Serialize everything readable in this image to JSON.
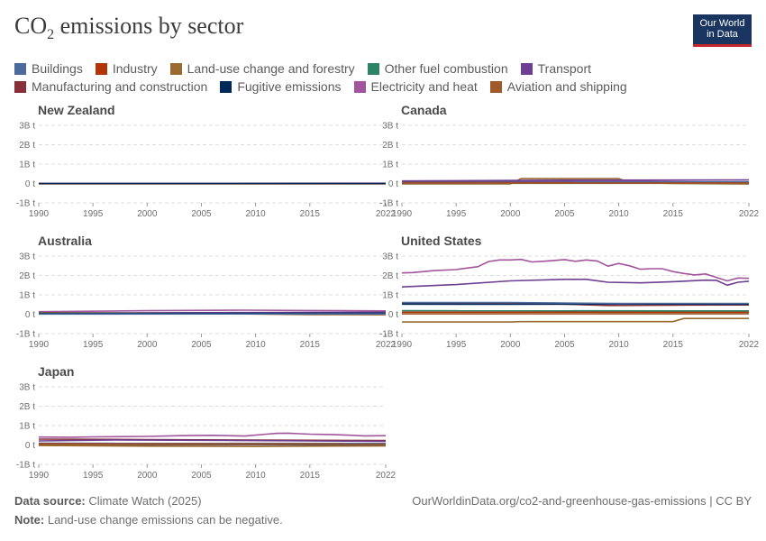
{
  "header": {
    "title_main": "CO",
    "title_sub": "2",
    "title_rest": " emissions by sector",
    "logo_line1": "Our World",
    "logo_line2": "in Data"
  },
  "legend": [
    {
      "name": "Buildings",
      "color": "#4c6a9c"
    },
    {
      "name": "Industry",
      "color": "#b13507"
    },
    {
      "name": "Land-use change and forestry",
      "color": "#9a6a2f"
    },
    {
      "name": "Other fuel combustion",
      "color": "#2c8465"
    },
    {
      "name": "Transport",
      "color": "#6d3e91"
    },
    {
      "name": "Manufacturing and construction",
      "color": "#883039"
    },
    {
      "name": "Fugitive emissions",
      "color": "#00295b"
    },
    {
      "name": "Electricity and heat",
      "color": "#a2559c"
    },
    {
      "name": "Aviation and shipping",
      "color": "#a05a2c"
    }
  ],
  "chart_data": [
    {
      "type": "line",
      "title": "New Zealand",
      "ylim": [
        -1000000000,
        3000000000
      ],
      "ytick_labels": [
        "3B t",
        "2B t",
        "1B t",
        "0 t",
        "-1B t"
      ],
      "xtick_labels": [
        "1990",
        "1995",
        "2000",
        "2005",
        "2010",
        "2015",
        "2022"
      ],
      "series": [
        {
          "name": "Buildings",
          "x": [
            1990,
            2022
          ],
          "y": [
            2000000,
            2000000
          ]
        },
        {
          "name": "Transport",
          "x": [
            1990,
            2022
          ],
          "y": [
            10000000,
            15000000
          ]
        },
        {
          "name": "Electricity and heat",
          "x": [
            1990,
            2022
          ],
          "y": [
            5000000,
            5000000
          ]
        },
        {
          "name": "Land-use change and forestry",
          "x": [
            1990,
            2022
          ],
          "y": [
            -20000000,
            -20000000
          ]
        },
        {
          "name": "Fugitive emissions",
          "x": [
            1990,
            2022
          ],
          "y": [
            1000000,
            1000000
          ]
        }
      ]
    },
    {
      "type": "line",
      "title": "Canada",
      "ylim": [
        -1000000000,
        3000000000
      ],
      "ytick_labels": [
        "3B t",
        "2B t",
        "1B t",
        "0 t",
        "-1B t"
      ],
      "xtick_labels": [
        "1990",
        "1995",
        "2000",
        "2005",
        "2010",
        "2015",
        "2022"
      ],
      "series": [
        {
          "name": "Land-use change and forestry",
          "x": [
            1990,
            2000,
            2001,
            2005,
            2010,
            2011,
            2015,
            2022
          ],
          "y": [
            -20000000,
            -20000000,
            250000000,
            250000000,
            250000000,
            50000000,
            0,
            -30000000
          ]
        },
        {
          "name": "Electricity and heat",
          "x": [
            1990,
            2000,
            2007,
            2015,
            2022
          ],
          "y": [
            100000000,
            130000000,
            130000000,
            90000000,
            60000000
          ]
        },
        {
          "name": "Transport",
          "x": [
            1990,
            2005,
            2022
          ],
          "y": [
            130000000,
            170000000,
            180000000
          ]
        },
        {
          "name": "Fugitive emissions",
          "x": [
            1990,
            2022
          ],
          "y": [
            40000000,
            50000000
          ]
        },
        {
          "name": "Buildings",
          "x": [
            1990,
            2022
          ],
          "y": [
            70000000,
            80000000
          ]
        },
        {
          "name": "Industry",
          "x": [
            1990,
            2022
          ],
          "y": [
            20000000,
            20000000
          ]
        },
        {
          "name": "Manufacturing and construction",
          "x": [
            1990,
            2022
          ],
          "y": [
            50000000,
            40000000
          ]
        },
        {
          "name": "Other fuel combustion",
          "x": [
            1990,
            2022
          ],
          "y": [
            10000000,
            10000000
          ]
        },
        {
          "name": "Aviation and shipping",
          "x": [
            1990,
            2022
          ],
          "y": [
            15000000,
            15000000
          ]
        }
      ]
    },
    {
      "type": "line",
      "title": "Australia",
      "ylim": [
        -1000000000,
        3000000000
      ],
      "ytick_labels": [
        "3B t",
        "2B t",
        "1B t",
        "0 t",
        "-1B t"
      ],
      "xtick_labels": [
        "1990",
        "1995",
        "2000",
        "2005",
        "2010",
        "2015",
        "2022"
      ],
      "series": [
        {
          "name": "Electricity and heat",
          "x": [
            1990,
            2000,
            2009,
            2015,
            2022
          ],
          "y": [
            130000000,
            180000000,
            210000000,
            190000000,
            170000000
          ]
        },
        {
          "name": "Transport",
          "x": [
            1990,
            2022
          ],
          "y": [
            60000000,
            100000000
          ]
        },
        {
          "name": "Land-use change and forestry",
          "x": [
            1990,
            2000,
            2010,
            2015,
            2022
          ],
          "y": [
            80000000,
            50000000,
            10000000,
            -20000000,
            -30000000
          ]
        },
        {
          "name": "Fugitive emissions",
          "x": [
            1990,
            2022
          ],
          "y": [
            40000000,
            50000000
          ]
        },
        {
          "name": "Buildings",
          "x": [
            1990,
            2022
          ],
          "y": [
            10000000,
            15000000
          ]
        }
      ]
    },
    {
      "type": "line",
      "title": "United States",
      "ylim": [
        -1000000000,
        3000000000
      ],
      "ytick_labels": [
        "3B t",
        "2B t",
        "1B t",
        "0 t",
        "-1B t"
      ],
      "xtick_labels": [
        "1990",
        "1995",
        "2000",
        "2005",
        "2010",
        "2015",
        "2022"
      ],
      "series": [
        {
          "name": "Electricity and heat",
          "x": [
            1990,
            1991,
            1993,
            1995,
            1996,
            1997,
            1998,
            1999,
            2000,
            2001,
            2002,
            2003,
            2004,
            2005,
            2006,
            2007,
            2008,
            2009,
            2010,
            2011,
            2012,
            2013,
            2014,
            2015,
            2016,
            2017,
            2018,
            2019,
            2020,
            2021,
            2022
          ],
          "y": [
            2130000000,
            2150000000,
            2250000000,
            2300000000,
            2380000000,
            2450000000,
            2720000000,
            2800000000,
            2800000000,
            2830000000,
            2700000000,
            2730000000,
            2770000000,
            2820000000,
            2730000000,
            2800000000,
            2750000000,
            2480000000,
            2620000000,
            2500000000,
            2320000000,
            2350000000,
            2350000000,
            2200000000,
            2100000000,
            2030000000,
            2080000000,
            1900000000,
            1720000000,
            1870000000,
            1850000000
          ]
        },
        {
          "name": "Transport",
          "x": [
            1990,
            1995,
            2000,
            2005,
            2007,
            2009,
            2012,
            2015,
            2018,
            2019,
            2020,
            2021,
            2022
          ],
          "y": [
            1410000000,
            1530000000,
            1720000000,
            1800000000,
            1800000000,
            1650000000,
            1620000000,
            1680000000,
            1760000000,
            1750000000,
            1500000000,
            1650000000,
            1700000000
          ]
        },
        {
          "name": "Manufacturing and construction",
          "x": [
            1990,
            2000,
            2005,
            2009,
            2015,
            2022
          ],
          "y": [
            560000000,
            560000000,
            520000000,
            450000000,
            470000000,
            480000000
          ]
        },
        {
          "name": "Fugitive emissions",
          "x": [
            1990,
            2000,
            2010,
            2022
          ],
          "y": [
            520000000,
            510000000,
            530000000,
            510000000
          ]
        },
        {
          "name": "Buildings",
          "x": [
            1990,
            2000,
            2010,
            2022
          ],
          "y": [
            600000000,
            600000000,
            560000000,
            560000000
          ]
        },
        {
          "name": "Industry",
          "x": [
            1990,
            2022
          ],
          "y": [
            100000000,
            100000000
          ]
        },
        {
          "name": "Aviation and shipping",
          "x": [
            1990,
            2022
          ],
          "y": [
            20000000,
            30000000
          ]
        },
        {
          "name": "Other fuel combustion",
          "x": [
            1990,
            2022
          ],
          "y": [
            180000000,
            170000000
          ]
        },
        {
          "name": "Land-use change and forestry",
          "x": [
            1990,
            2000,
            2001,
            2015,
            2016,
            2022
          ],
          "y": [
            -400000000,
            -400000000,
            -380000000,
            -380000000,
            -220000000,
            -220000000
          ]
        }
      ]
    },
    {
      "type": "line",
      "title": "Japan",
      "ylim": [
        -1000000000,
        3000000000
      ],
      "ytick_labels": [
        "3B t",
        "2B t",
        "1B t",
        "0 t",
        "-1B t"
      ],
      "xtick_labels": [
        "1990",
        "1995",
        "2000",
        "2005",
        "2010",
        "2015",
        "2022"
      ],
      "series": [
        {
          "name": "Electricity and heat",
          "x": [
            1990,
            1993,
            1995,
            2000,
            2003,
            2006,
            2009,
            2011,
            2012,
            2013,
            2014,
            2015,
            2017,
            2019,
            2020,
            2022
          ],
          "y": [
            410000000,
            400000000,
            420000000,
            440000000,
            480000000,
            500000000,
            460000000,
            560000000,
            600000000,
            610000000,
            580000000,
            560000000,
            540000000,
            500000000,
            470000000,
            480000000
          ]
        },
        {
          "name": "Manufacturing and construction",
          "x": [
            1990,
            2000,
            2010,
            2022
          ],
          "y": [
            300000000,
            280000000,
            250000000,
            230000000
          ]
        },
        {
          "name": "Transport",
          "x": [
            1990,
            1997,
            2005,
            2022
          ],
          "y": [
            210000000,
            260000000,
            240000000,
            190000000
          ]
        },
        {
          "name": "Buildings",
          "x": [
            1990,
            2022
          ],
          "y": [
            90000000,
            80000000
          ]
        },
        {
          "name": "Industry",
          "x": [
            1990,
            2022
          ],
          "y": [
            60000000,
            50000000
          ]
        },
        {
          "name": "Fugitive emissions",
          "x": [
            1990,
            2022
          ],
          "y": [
            20000000,
            20000000
          ]
        },
        {
          "name": "Land-use change and forestry",
          "x": [
            1990,
            2000,
            2010,
            2015,
            2022
          ],
          "y": [
            -30000000,
            -60000000,
            -80000000,
            -60000000,
            -50000000
          ]
        },
        {
          "name": "Aviation and shipping",
          "x": [
            1990,
            2022
          ],
          "y": [
            30000000,
            40000000
          ]
        }
      ]
    }
  ],
  "footer": {
    "source_label": "Data source:",
    "source_value": "Climate Watch (2025)",
    "url": "OurWorldinData.org/co2-and-greenhouse-gas-emissions | CC BY",
    "note_label": "Note:",
    "note_value": "Land-use change emissions can be negative."
  }
}
